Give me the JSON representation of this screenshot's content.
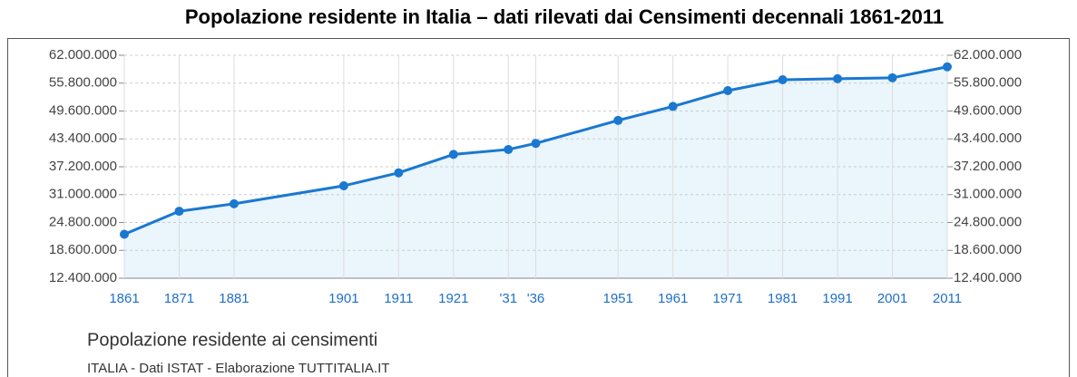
{
  "chart_data": {
    "type": "line",
    "title": "Popolazione residente in Italia – dati rilevati dai Censimenti decennali 1861-2011",
    "subtitle": "Popolazione residente ai censimenti",
    "source": "ITALIA - Dati ISTAT - Elaborazione TUTTITALIA.IT",
    "x": [
      1861,
      1871,
      1881,
      1901,
      1911,
      1921,
      1931,
      1936,
      1951,
      1961,
      1971,
      1981,
      1991,
      2001,
      2011
    ],
    "series": [
      {
        "color": "#1a78d0",
        "values": [
          22176477,
          27303509,
          28953480,
          32965504,
          35845048,
          39943528,
          41043489,
          42398489,
          47515537,
          50623569,
          54136547,
          56556911,
          56778031,
          56995744,
          59433744
        ]
      }
    ],
    "xlim": [
      1861,
      2011
    ],
    "xticks": [
      1861,
      1871,
      1881,
      1901,
      1911,
      1921,
      {
        "value": 1931,
        "label": "'31"
      },
      {
        "value": 1936,
        "label": "'36"
      },
      1951,
      1961,
      1971,
      1981,
      1991,
      2001,
      2011
    ],
    "ylim": [
      12400000,
      62000000
    ],
    "yticks": [
      {
        "value": 12400000,
        "label": "12.400.000"
      },
      {
        "value": 18600000,
        "label": "18.600.000"
      },
      {
        "value": 24800000,
        "label": "24.800.000"
      },
      {
        "value": 31000000,
        "label": "31.000.000"
      },
      {
        "value": 37200000,
        "label": "37.200.000"
      },
      {
        "value": 43400000,
        "label": "43.400.000"
      },
      {
        "value": 49600000,
        "label": "49.600.000"
      },
      {
        "value": 55800000,
        "label": "55.800.000"
      },
      {
        "value": 62000000,
        "label": "62.000.000"
      }
    ],
    "area_color": "#eaf5fc",
    "grid": true
  }
}
